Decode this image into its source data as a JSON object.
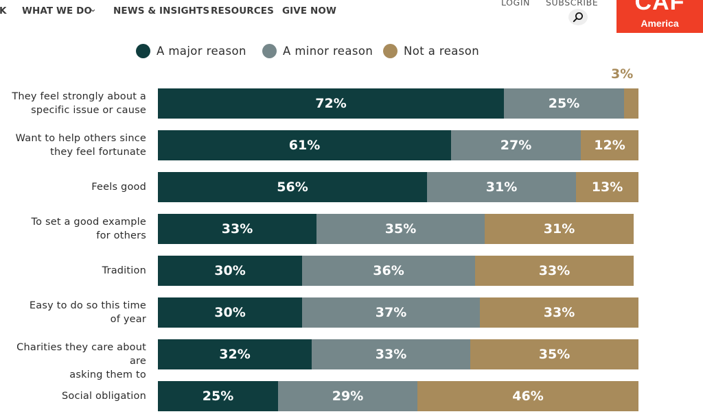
{
  "nav": {
    "items": [
      {
        "label": "K"
      },
      {
        "label": "WHAT WE DO",
        "chevron": "⌄"
      },
      {
        "label": "NEWS & INSIGHTS"
      },
      {
        "label": "RESOURCES"
      },
      {
        "label": "GIVE NOW"
      }
    ],
    "login": "LOGIN",
    "subscribe": "SUBSCRIBE",
    "search_icon": "search-icon"
  },
  "logo": {
    "main": "CAF",
    "sub": "America"
  },
  "colors": {
    "major": "#0f3d3e",
    "minor": "#75878a",
    "not": "#a88b5b",
    "logo": "#ef3e26"
  },
  "chart_data": {
    "type": "bar",
    "orientation": "horizontal",
    "stacked": true,
    "xlim": [
      0,
      100
    ],
    "legend_position": "top",
    "categories": [
      [
        "They feel strongly about a",
        "specific issue or cause"
      ],
      [
        "Want to help others since",
        "they feel fortunate"
      ],
      [
        "Feels good"
      ],
      [
        "To set a good example",
        "for others"
      ],
      [
        "Tradition"
      ],
      [
        "Easy to do so this time",
        "of year"
      ],
      [
        "Charities they care about are",
        "asking them to"
      ],
      [
        "Social obligation"
      ]
    ],
    "series": [
      {
        "name": "A major reason",
        "color_key": "major",
        "values": [
          72,
          61,
          56,
          33,
          30,
          30,
          32,
          25
        ]
      },
      {
        "name": "A minor reason",
        "color_key": "minor",
        "values": [
          25,
          27,
          31,
          35,
          36,
          37,
          33,
          29
        ]
      },
      {
        "name": "Not a reason",
        "color_key": "not",
        "values": [
          3,
          12,
          13,
          31,
          33,
          33,
          35,
          46
        ]
      }
    ],
    "value_suffix": "%"
  }
}
